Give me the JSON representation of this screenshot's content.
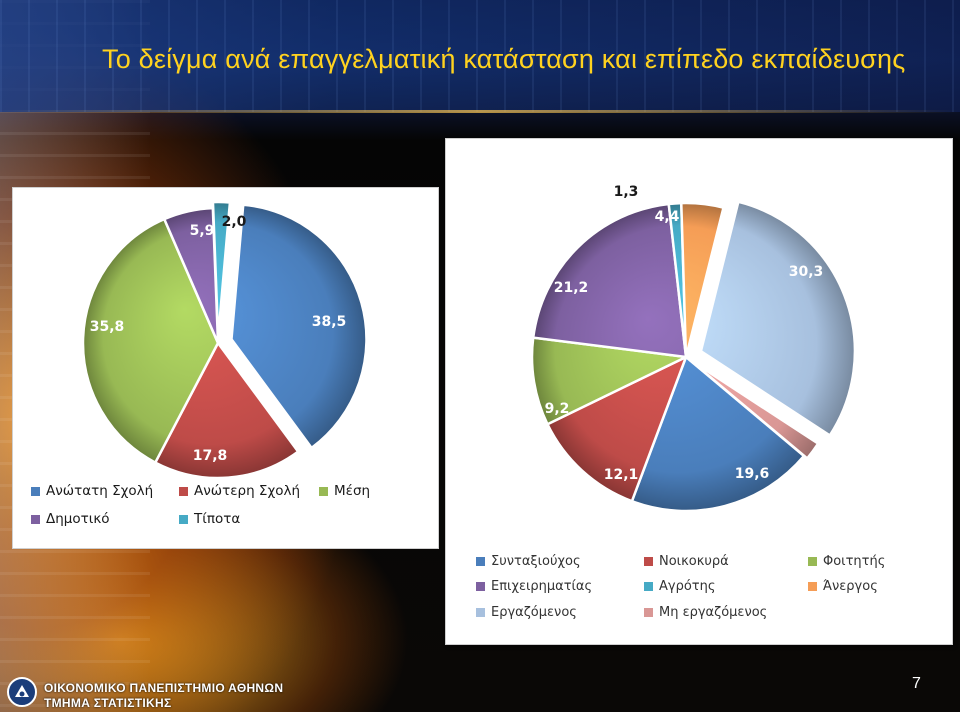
{
  "slide": {
    "title": "Το δείγμα ανά επαγγελματική κατάσταση και επίπεδο εκπαίδευσης",
    "footer_university": "ΟΙΚΟΝΟΜΙΚΟ ΠΑΝΕΠΙΣΤΗΜΙΟ ΑΘΗΝΩΝ",
    "footer_department": "ΤΜΗΜΑ ΣΤΑΤΙΣΤΙΚΗΣ",
    "page_number": "7",
    "logo_icon": "university-seal-icon"
  },
  "chart_data": [
    {
      "type": "pie",
      "id": "education",
      "title": "",
      "exploded": true,
      "legend_position": "bottom",
      "slices": [
        {
          "label": "Ανώτατη Σχολή",
          "value": 38.5,
          "value_label": "38,5",
          "color": "#4a7ebb"
        },
        {
          "label": "Ανώτερη Σχολή",
          "value": 17.8,
          "value_label": "17,8",
          "color": "#be4b48"
        },
        {
          "label": "Μέση",
          "value": 35.8,
          "value_label": "35,8",
          "color": "#98b954"
        },
        {
          "label": "Δημοτικό",
          "value": 5.9,
          "value_label": "5,9",
          "color": "#7d60a0"
        },
        {
          "label": "Τίποτα",
          "value": 2.0,
          "value_label": "2,0",
          "color": "#46aac5"
        }
      ]
    },
    {
      "type": "pie",
      "id": "occupation",
      "title": "",
      "exploded": true,
      "legend_position": "bottom",
      "slices": [
        {
          "label": "Συνταξιούχος",
          "value": 19.6,
          "value_label": "19,6",
          "color": "#4a7ebb"
        },
        {
          "label": "Νοικοκυρά",
          "value": 12.1,
          "value_label": "12,1",
          "color": "#be4b48"
        },
        {
          "label": "Φοιτητής",
          "value": 9.2,
          "value_label": "9,2",
          "color": "#98b954"
        },
        {
          "label": "Επιχειρηματίας",
          "value": 21.2,
          "value_label": "21,2",
          "color": "#7d60a0"
        },
        {
          "label": "Αγρότης",
          "value": 1.3,
          "value_label": "1,3",
          "color": "#46aac5"
        },
        {
          "label": "Άνεργος",
          "value": 4.4,
          "value_label": "4,4",
          "color": "#f59d56"
        },
        {
          "label": "Εργαζόμενος",
          "value": 30.3,
          "value_label": "30,3",
          "color": "#a7c0de"
        },
        {
          "label": "Μη εργαζόμενος",
          "value": 1.9,
          "value_label": "",
          "color": "#d99795"
        }
      ]
    }
  ]
}
